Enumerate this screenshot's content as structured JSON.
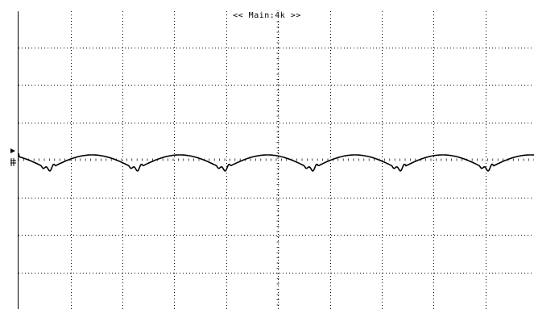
{
  "scope": {
    "header_label": "<< Main:4k >>",
    "divisions": {
      "horizontal": 10,
      "vertical": 8
    },
    "trace": {
      "channel_marker_icon": "channel-1-ground-marker",
      "color": "#000000",
      "ripple_cycles": 6
    },
    "colors": {
      "background": "#ffffff",
      "grid": "#000000",
      "trace": "#000000"
    }
  }
}
